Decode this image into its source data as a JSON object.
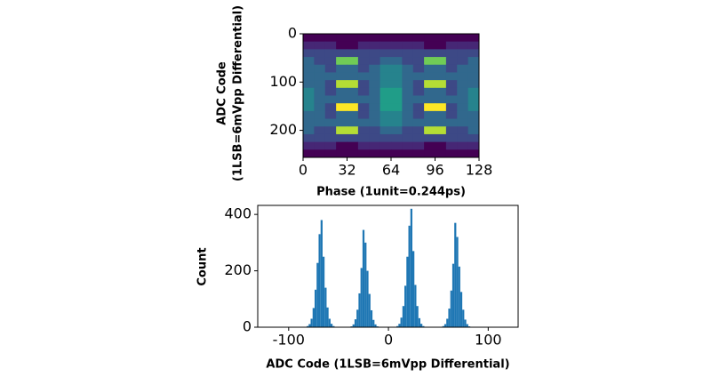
{
  "chart_data": [
    {
      "type": "heatmap",
      "xlabel": "Phase (1unit=0.244ps)",
      "ylabel": [
        "ADC Code",
        "(1LSB=6mVpp Differential)"
      ],
      "xlim": [
        0,
        128
      ],
      "ylim": [
        256,
        0
      ],
      "xticks": [
        0,
        32,
        64,
        96,
        128
      ],
      "yticks": [
        0,
        100,
        200
      ],
      "zlim": [
        0,
        9
      ],
      "colormap": [
        "#440154",
        "#46327e",
        "#365c8d",
        "#277f8e",
        "#1fa187",
        "#4ac16d",
        "#a0da39",
        "#fde725"
      ],
      "z": [
        [
          0,
          0,
          0,
          0,
          0,
          0,
          0,
          0,
          0,
          0,
          0,
          0,
          0,
          0,
          0,
          0
        ],
        [
          1,
          1,
          1,
          0,
          0,
          1,
          1,
          1,
          1,
          1,
          1,
          0,
          0,
          1,
          1,
          1
        ],
        [
          2,
          2,
          2,
          2,
          2,
          2,
          2,
          2,
          2,
          2,
          2,
          2,
          2,
          2,
          2,
          2
        ],
        [
          3,
          2,
          2,
          7,
          7,
          2,
          2,
          3,
          3,
          2,
          2,
          7,
          7,
          2,
          2,
          3
        ],
        [
          3,
          3,
          2,
          3,
          3,
          2,
          3,
          4,
          4,
          3,
          2,
          3,
          3,
          2,
          3,
          3
        ],
        [
          3,
          3,
          3,
          3,
          3,
          3,
          3,
          4,
          4,
          3,
          3,
          3,
          3,
          3,
          3,
          3
        ],
        [
          3,
          3,
          2,
          8,
          8,
          2,
          3,
          4,
          4,
          3,
          2,
          8,
          8,
          2,
          3,
          3
        ],
        [
          4,
          3,
          2,
          3,
          3,
          2,
          3,
          5,
          5,
          3,
          2,
          3,
          3,
          2,
          3,
          4
        ],
        [
          4,
          3,
          3,
          3,
          3,
          3,
          3,
          5,
          5,
          3,
          3,
          3,
          3,
          3,
          3,
          4
        ],
        [
          4,
          3,
          2,
          9,
          9,
          2,
          3,
          5,
          5,
          3,
          2,
          9,
          9,
          2,
          3,
          4
        ],
        [
          3,
          3,
          2,
          3,
          3,
          2,
          3,
          4,
          4,
          3,
          2,
          3,
          3,
          2,
          3,
          3
        ],
        [
          3,
          3,
          3,
          3,
          3,
          3,
          3,
          4,
          4,
          3,
          3,
          3,
          3,
          3,
          3,
          3
        ],
        [
          3,
          2,
          2,
          8,
          8,
          2,
          2,
          3,
          3,
          2,
          2,
          8,
          8,
          2,
          2,
          3
        ],
        [
          2,
          2,
          2,
          2,
          2,
          2,
          2,
          2,
          2,
          2,
          2,
          2,
          2,
          2,
          2,
          2
        ],
        [
          1,
          1,
          1,
          0,
          0,
          1,
          1,
          1,
          1,
          1,
          1,
          0,
          0,
          1,
          1,
          1
        ],
        [
          0,
          0,
          0,
          0,
          0,
          0,
          0,
          0,
          0,
          0,
          0,
          0,
          0,
          0,
          0,
          0
        ]
      ]
    },
    {
      "type": "histogram",
      "xlabel": "ADC Code (1LSB=6mVpp Differential)",
      "ylabel": "Count",
      "color": "#1f77b4",
      "xlim": [
        -131,
        130
      ],
      "ylim": [
        0,
        432
      ],
      "xticks": [
        -100,
        0,
        100
      ],
      "yticks": [
        0,
        200,
        400
      ],
      "bins": [
        -84,
        -82,
        -80,
        -78,
        -76,
        -74,
        -72,
        -70,
        -68,
        -66,
        -64,
        -62,
        -60,
        -58,
        -56,
        -54,
        -52,
        -50,
        -48,
        -46,
        -44,
        -42,
        -40,
        -38,
        -36,
        -34,
        -32,
        -30,
        -28,
        -26,
        -24,
        -22,
        -20,
        -18,
        -16,
        -14,
        -12,
        -10,
        -8,
        -6,
        -4,
        -2,
        0,
        2,
        4,
        6,
        8,
        10,
        12,
        14,
        16,
        18,
        20,
        22,
        24,
        26,
        28,
        30,
        32,
        34,
        36,
        38,
        40,
        42,
        44,
        46,
        48,
        50,
        52,
        54,
        56,
        58,
        60,
        62,
        64,
        66,
        68,
        70,
        72,
        74,
        76,
        78,
        80,
        82,
        84
      ],
      "values": [
        0,
        4,
        11,
        30,
        68,
        133,
        228,
        330,
        380,
        250,
        140,
        70,
        30,
        12,
        4,
        0,
        0,
        0,
        0,
        0,
        0,
        0,
        0,
        3,
        10,
        28,
        62,
        120,
        210,
        345,
        300,
        200,
        118,
        60,
        26,
        10,
        3,
        0,
        0,
        0,
        0,
        0,
        0,
        0,
        0,
        0,
        4,
        12,
        34,
        75,
        147,
        250,
        360,
        420,
        270,
        150,
        75,
        32,
        12,
        4,
        0,
        0,
        0,
        0,
        0,
        0,
        0,
        0,
        0,
        4,
        11,
        30,
        66,
        130,
        225,
        370,
        320,
        215,
        125,
        62,
        27,
        11,
        3,
        0
      ]
    }
  ]
}
